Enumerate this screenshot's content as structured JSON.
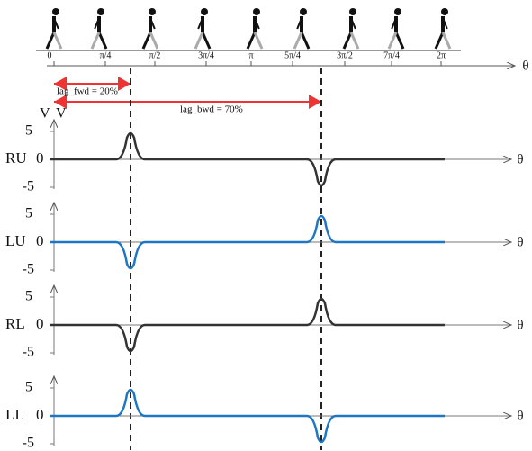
{
  "phase_axis": {
    "ticks": [
      "0",
      "π/4",
      "π/2",
      "3π/4",
      "π",
      "5π/4",
      "3π/2",
      "7π/4",
      "2π"
    ],
    "symbol": "θ"
  },
  "lags": [
    {
      "label": "lag_fwd = 20%"
    },
    {
      "label": "lag_bwd = 70%"
    }
  ],
  "y_unit": "V",
  "channels": [
    {
      "name": "RU",
      "zero": "0",
      "top": "5",
      "bottom": "-5",
      "symbol": "θ"
    },
    {
      "name": "LU",
      "zero": "0",
      "top": "5",
      "bottom": "-5",
      "symbol": "θ"
    },
    {
      "name": "RL",
      "zero": "0",
      "top": "5",
      "bottom": "-5",
      "symbol": "θ"
    },
    {
      "name": "LL",
      "zero": "0",
      "top": "5",
      "bottom": "-5",
      "symbol": "θ"
    }
  ]
}
